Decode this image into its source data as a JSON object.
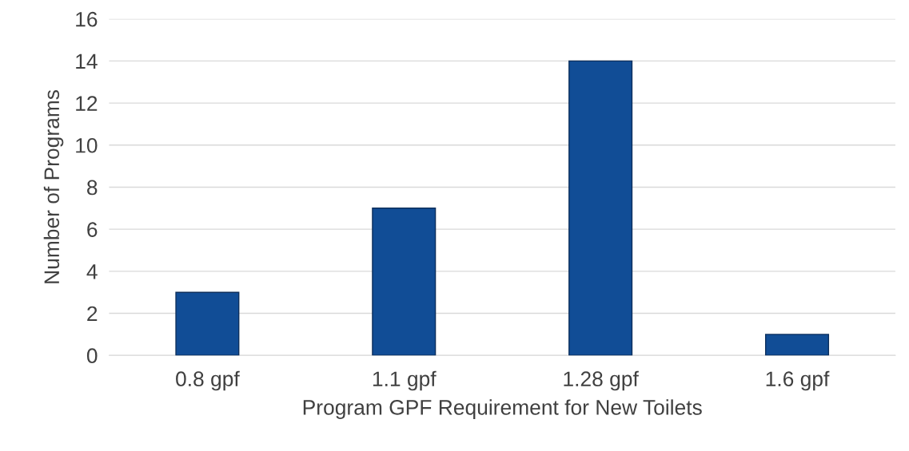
{
  "chart_data": {
    "type": "bar",
    "xlabel": "Program GPF Requirement for New Toilets",
    "ylabel": "Number of Programs",
    "categories": [
      "0.8 gpf",
      "1.1 gpf",
      "1.28 gpf",
      "1.6 gpf"
    ],
    "values": [
      3,
      7,
      14,
      1
    ],
    "color": "#114d96",
    "ylim": [
      0,
      16
    ],
    "yticks": [
      0,
      2,
      4,
      6,
      8,
      10,
      12,
      14,
      16
    ],
    "grid": "y",
    "legend": false
  }
}
